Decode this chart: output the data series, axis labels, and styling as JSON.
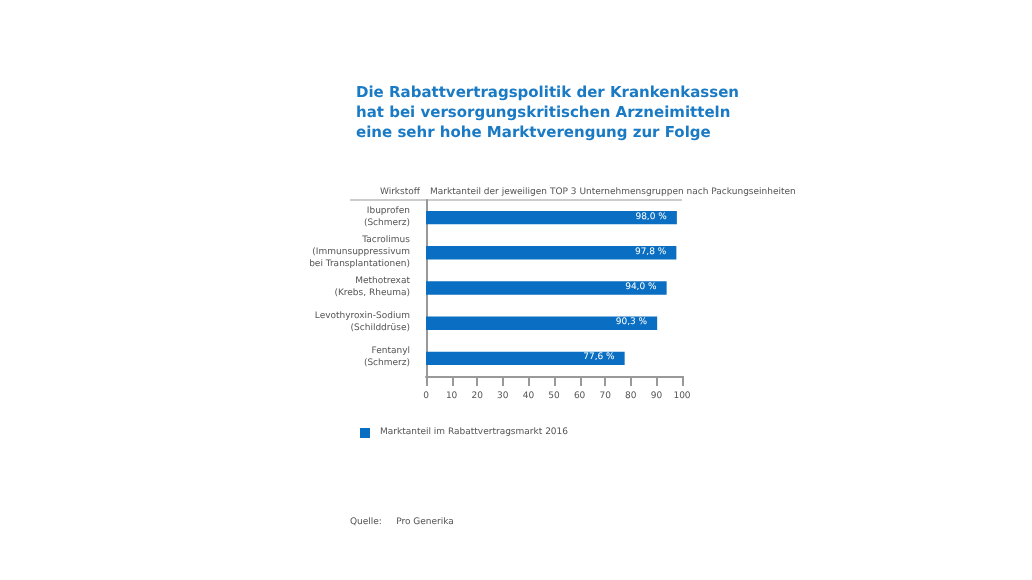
{
  "chart_data": {
    "type": "bar",
    "orientation": "horizontal",
    "title": "Die Rabattvertragspolitik der Krankenkassen hat bei versorgungskritischen Arzneimitteln eine sehr hohe Marktverengung zur Folge",
    "categories": [
      "Ibuprofen\n(Schmerz)",
      "Tacrolimus\n(Immunsuppressivum\nbei Transplantationen)",
      "Methotrexat\n(Krebs, Rheuma)",
      "Levothyroxin-Sodium\n(Schilddrüse)",
      "Fentanyl\n(Schmerz)"
    ],
    "series": [
      {
        "name": "Marktanteil im Rabattvertragsmarkt 2016",
        "color": "#0a6fc2",
        "values": [
          98.0,
          97.8,
          94.0,
          90.3,
          77.6
        ],
        "value_labels": [
          "98,0 %",
          "97,8 %",
          "94,0 %",
          "90,3 %",
          "77,6 %"
        ]
      }
    ],
    "xlim": [
      0,
      100
    ],
    "xticks": [
      0,
      10,
      20,
      30,
      40,
      50,
      60,
      70,
      80,
      90,
      100
    ],
    "grid": false,
    "legend": "bottom left",
    "annotations": [
      "Wirkstoff",
      "Marktanteil der jeweiligen TOP 3 Unternehmensgruppen nach Packungseinheiten",
      "Quelle:     Pro Generika"
    ]
  }
}
